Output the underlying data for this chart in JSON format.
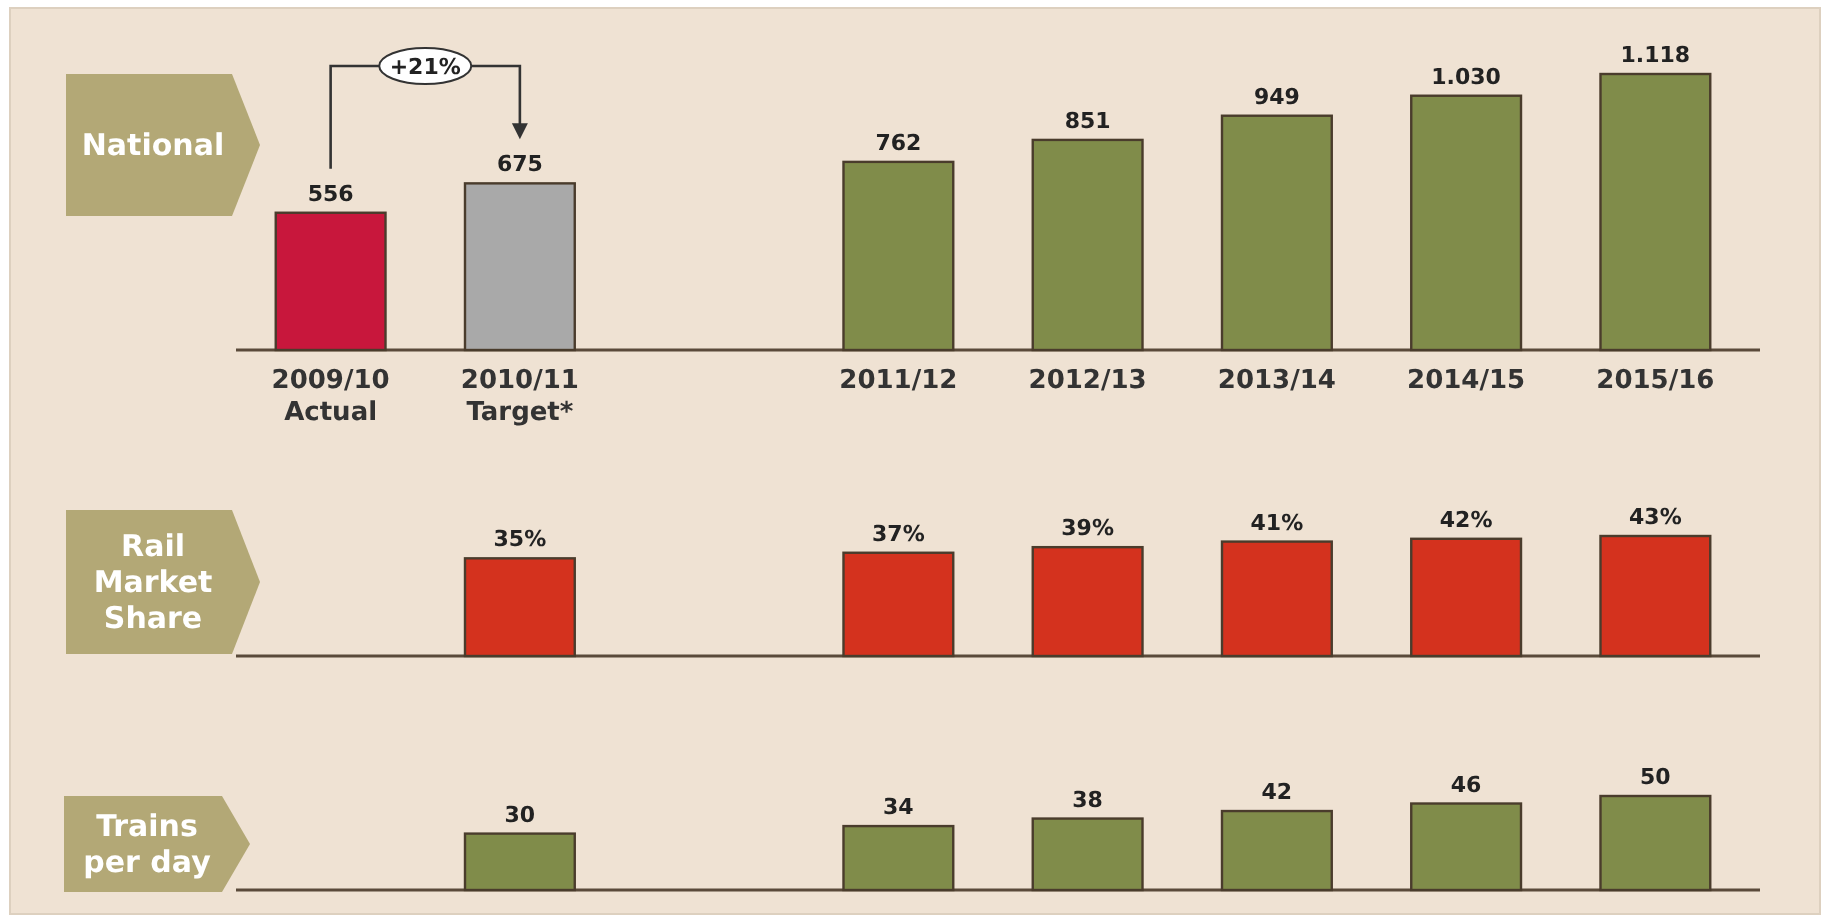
{
  "chart_data": [
    {
      "type": "bar",
      "title": "National",
      "categories": [
        "2009/10\nActual",
        "2010/11\nTarget*",
        null,
        "2011/12",
        "2012/13",
        "2013/14",
        "2014/15",
        "2015/16"
      ],
      "values": [
        556,
        675,
        null,
        762,
        851,
        949,
        1030,
        1118
      ],
      "colors": [
        "#c8173c",
        "#a9a9a9",
        null,
        "#808c4a",
        "#808c4a",
        "#808c4a",
        "#808c4a",
        "#808c4a"
      ],
      "value_labels": [
        "556",
        "675",
        null,
        "762",
        "851",
        "949",
        "1.030",
        "1.118"
      ],
      "annotations": [
        "+21%"
      ]
    },
    {
      "type": "bar",
      "title": "Rail Market Share",
      "categories": [
        null,
        null,
        null,
        null,
        null,
        null,
        null,
        null
      ],
      "values": [
        null,
        35,
        null,
        37,
        39,
        41,
        42,
        43
      ],
      "color": "#d4321e",
      "value_labels": [
        null,
        "35%",
        null,
        "37%",
        "39%",
        "41%",
        "42%",
        "43%"
      ]
    },
    {
      "type": "bar",
      "title": "Trains per day",
      "categories": [
        null,
        null,
        null,
        null,
        null,
        null,
        null,
        null
      ],
      "values": [
        null,
        30,
        null,
        34,
        38,
        42,
        46,
        50
      ],
      "color": "#808c4a",
      "value_labels": [
        null,
        "30",
        null,
        "34",
        "38",
        "42",
        "46",
        "50"
      ]
    }
  ]
}
